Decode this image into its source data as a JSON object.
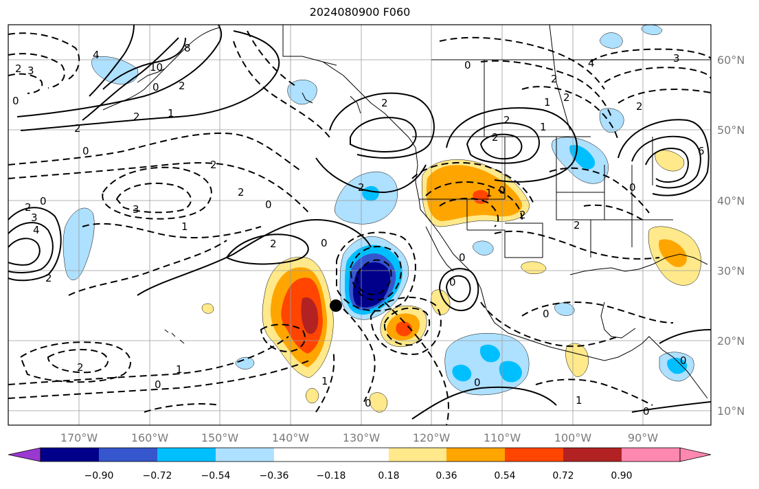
{
  "title": "2024080900 F060",
  "lat_labels": [
    "60°N",
    "50°N",
    "40°N",
    "30°N",
    "20°N",
    "10°N"
  ],
  "lon_labels": [
    "170°W",
    "160°W",
    "150°W",
    "140°W",
    "130°W",
    "120°W",
    "110°W",
    "100°W",
    "90°W"
  ],
  "colorbar": {
    "colors": [
      "#9b38d1",
      "#00008b",
      "#3556cc",
      "#00bfff",
      "#aee0ff",
      "#ffffff",
      "#ffe98a",
      "#ffa500",
      "#ff4500",
      "#b22222",
      "#ff88b0"
    ],
    "tick_labels": [
      "−0.90",
      "−0.72",
      "−0.54",
      "−0.36",
      "−0.18",
      "0.18",
      "0.36",
      "0.54",
      "0.72",
      "0.90"
    ]
  },
  "contour_labels": [
    "2",
    "0",
    "3",
    "2",
    "4",
    "10",
    "8",
    "0",
    "2",
    "1",
    "2",
    "0",
    "2",
    "0",
    "3",
    "2",
    "3",
    "4",
    "2",
    "1",
    "0",
    "2",
    "2",
    "2",
    "0",
    "2",
    "2",
    "1",
    "2",
    "0",
    "2",
    "4",
    "3",
    "1",
    "2",
    "2",
    "0",
    "1",
    "2",
    "6",
    "2",
    "0",
    "0",
    "0",
    "0",
    "1",
    "1",
    "0",
    "0",
    "0",
    "2",
    "1",
    "0",
    "0"
  ],
  "marker": "black-dot"
}
